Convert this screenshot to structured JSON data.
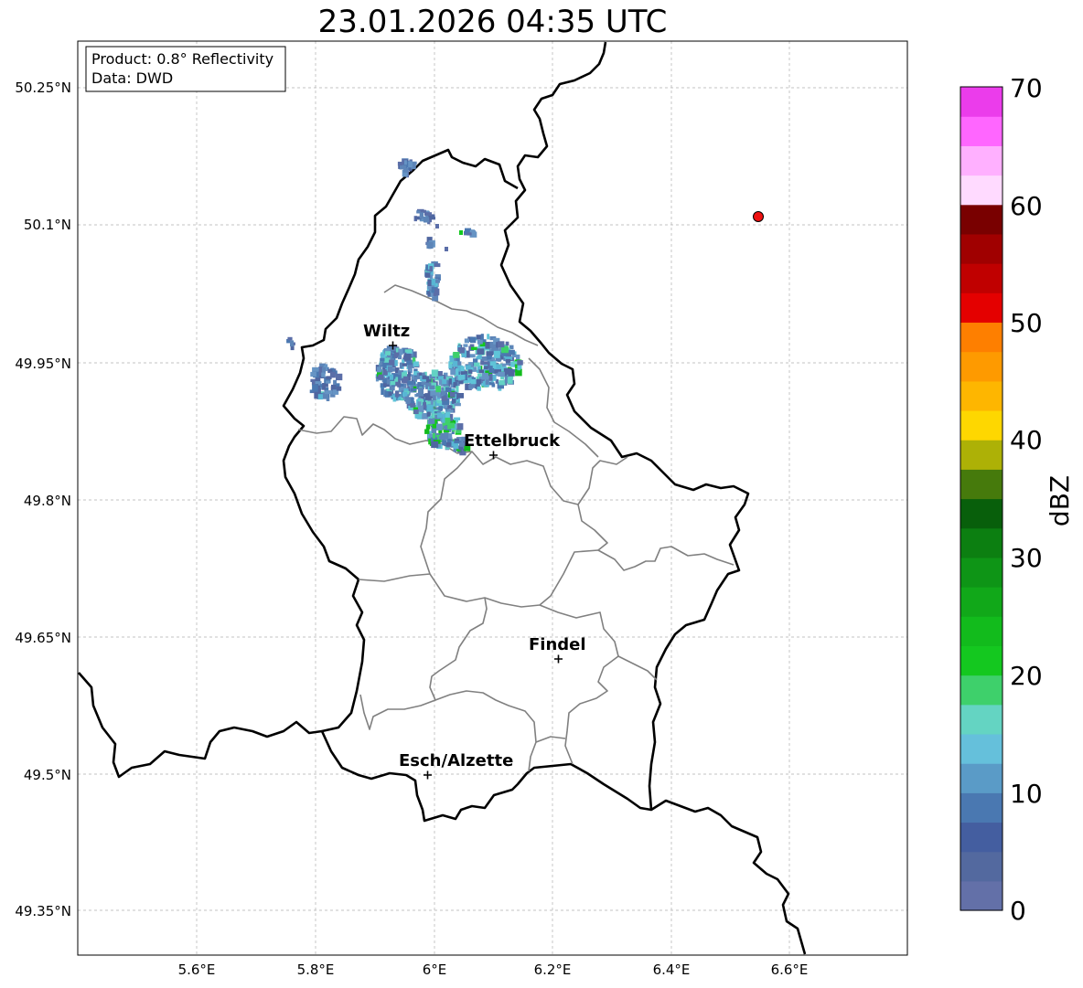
{
  "title": "23.01.2026 04:35 UTC",
  "info_box": {
    "product": "Product: 0.8° Reflectivity",
    "data": "Data: DWD"
  },
  "axes": {
    "x_ticks": [
      "5.6°E",
      "5.8°E",
      "6°E",
      "6.2°E",
      "6.4°E",
      "6.6°E"
    ],
    "y_ticks": [
      "50.25°N",
      "50.1°N",
      "49.95°N",
      "49.8°N",
      "49.65°N",
      "49.5°N",
      "49.35°N"
    ]
  },
  "cities": [
    {
      "name": "Wiltz"
    },
    {
      "name": "Ettelbruck"
    },
    {
      "name": "Findel"
    },
    {
      "name": "Esch/Alzette"
    }
  ],
  "colorbar": {
    "unit": "dBZ",
    "ticks": [
      "0",
      "10",
      "20",
      "30",
      "40",
      "50",
      "60",
      "70"
    ],
    "colors": [
      "#6370a8",
      "#53699f",
      "#445ea0",
      "#4a78b1",
      "#5a9bc7",
      "#65c0db",
      "#64d4c2",
      "#3ed06b",
      "#14c81f",
      "#12bb1c",
      "#11a819",
      "#0e9516",
      "#0c7f11",
      "#085f0b",
      "#467a0c",
      "#adb106",
      "#fed700",
      "#feb600",
      "#fe9a00",
      "#fe7f00",
      "#e40000",
      "#c00000",
      "#a00000",
      "#790000",
      "#ffdaff",
      "#ffb0ff",
      "#ff66ff",
      "#eb3ceb"
    ]
  },
  "colors": {
    "border": "#000000",
    "canton": "#808080",
    "grid": "#b0b0b0",
    "marker": "#ee1111"
  }
}
